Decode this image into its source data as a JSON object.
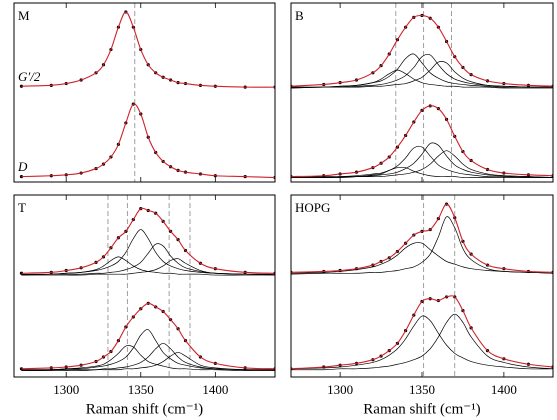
{
  "chart_data": [
    {
      "type": "line",
      "label": "M",
      "x": [
        1270,
        1290,
        1300,
        1310,
        1320,
        1325,
        1330,
        1335,
        1340,
        1345,
        1350,
        1355,
        1360,
        1365,
        1370,
        1375,
        1380,
        1390,
        1400,
        1420,
        1440
      ],
      "xlim": [
        1265,
        1440
      ],
      "xticks": [
        1300,
        1350,
        1400
      ],
      "ylim": [
        0,
        2
      ],
      "show_tick_labels": false,
      "vlines": [
        1346
      ],
      "annotations": [
        "G′/2",
        "D"
      ],
      "series": [
        {
          "color": "#d0212a",
          "markers": true,
          "values": [
            1.07,
            1.08,
            1.1,
            1.14,
            1.22,
            1.31,
            1.48,
            1.73,
            1.9,
            1.73,
            1.48,
            1.31,
            1.22,
            1.17,
            1.14,
            1.11,
            1.1,
            1.08,
            1.07,
            1.06,
            1.06
          ]
        },
        {
          "color": "#d0212a",
          "markers": true,
          "values": [
            0.06,
            0.07,
            0.08,
            0.1,
            0.15,
            0.2,
            0.28,
            0.42,
            0.66,
            0.87,
            0.76,
            0.5,
            0.33,
            0.23,
            0.17,
            0.13,
            0.11,
            0.09,
            0.07,
            0.06,
            0.05
          ]
        }
      ]
    },
    {
      "type": "line",
      "label": "B",
      "x": [
        1270,
        1290,
        1300,
        1310,
        1320,
        1325,
        1330,
        1335,
        1340,
        1345,
        1350,
        1355,
        1360,
        1365,
        1370,
        1375,
        1380,
        1390,
        1400,
        1415,
        1430
      ],
      "xlim": [
        1270,
        1430
      ],
      "xticks": [
        1300,
        1350,
        1400
      ],
      "ylim": [
        0,
        2
      ],
      "show_tick_labels": false,
      "vlines": [
        1334,
        1351,
        1368
      ],
      "series": [
        {
          "color": "#000000",
          "values": [
            1.05,
            1.06,
            1.07,
            1.08,
            1.11,
            1.15,
            1.21,
            1.25,
            1.21,
            1.15,
            1.11,
            1.09,
            1.08,
            1.07,
            1.07,
            1.06,
            1.06,
            1.06,
            1.05,
            1.05,
            1.05
          ]
        },
        {
          "color": "#000000",
          "values": [
            1.06,
            1.06,
            1.07,
            1.08,
            1.11,
            1.13,
            1.18,
            1.26,
            1.38,
            1.43,
            1.33,
            1.22,
            1.16,
            1.12,
            1.1,
            1.09,
            1.08,
            1.07,
            1.06,
            1.06,
            1.06
          ]
        },
        {
          "color": "#000000",
          "values": [
            1.06,
            1.06,
            1.06,
            1.07,
            1.08,
            1.09,
            1.11,
            1.14,
            1.19,
            1.28,
            1.4,
            1.42,
            1.31,
            1.21,
            1.15,
            1.12,
            1.1,
            1.08,
            1.07,
            1.06,
            1.06
          ]
        },
        {
          "color": "#000000",
          "values": [
            1.05,
            1.06,
            1.06,
            1.06,
            1.07,
            1.07,
            1.08,
            1.09,
            1.1,
            1.13,
            1.17,
            1.25,
            1.34,
            1.33,
            1.23,
            1.16,
            1.12,
            1.08,
            1.07,
            1.06,
            1.06
          ]
        },
        {
          "color": "#d0212a",
          "markers": true,
          "values": [
            1.07,
            1.09,
            1.11,
            1.14,
            1.22,
            1.3,
            1.43,
            1.59,
            1.73,
            1.84,
            1.86,
            1.83,
            1.73,
            1.57,
            1.4,
            1.28,
            1.2,
            1.13,
            1.1,
            1.08,
            1.07
          ]
        },
        {
          "color": "#000000",
          "values": [
            0.05,
            0.05,
            0.05,
            0.06,
            0.08,
            0.09,
            0.13,
            0.16,
            0.16,
            0.12,
            0.09,
            0.07,
            0.06,
            0.06,
            0.06,
            0.05,
            0.05,
            0.05,
            0.05,
            0.05,
            0.05
          ]
        },
        {
          "color": "#000000",
          "values": [
            0.05,
            0.06,
            0.06,
            0.07,
            0.09,
            0.1,
            0.13,
            0.18,
            0.27,
            0.38,
            0.39,
            0.29,
            0.19,
            0.14,
            0.11,
            0.09,
            0.08,
            0.06,
            0.06,
            0.05,
            0.05
          ]
        },
        {
          "color": "#000000",
          "values": [
            0.05,
            0.05,
            0.06,
            0.06,
            0.07,
            0.08,
            0.09,
            0.11,
            0.15,
            0.21,
            0.31,
            0.43,
            0.41,
            0.29,
            0.19,
            0.14,
            0.11,
            0.08,
            0.07,
            0.06,
            0.05
          ]
        },
        {
          "color": "#000000",
          "values": [
            0.05,
            0.05,
            0.05,
            0.06,
            0.06,
            0.06,
            0.07,
            0.08,
            0.09,
            0.11,
            0.14,
            0.2,
            0.29,
            0.35,
            0.29,
            0.2,
            0.14,
            0.09,
            0.07,
            0.06,
            0.05
          ]
        },
        {
          "color": "#d0212a",
          "markers": true,
          "values": [
            0.06,
            0.07,
            0.09,
            0.11,
            0.16,
            0.21,
            0.28,
            0.39,
            0.52,
            0.67,
            0.8,
            0.85,
            0.82,
            0.7,
            0.51,
            0.34,
            0.24,
            0.14,
            0.1,
            0.08,
            0.07
          ]
        }
      ]
    },
    {
      "type": "line",
      "label": "T",
      "x": [
        1270,
        1290,
        1300,
        1310,
        1320,
        1325,
        1330,
        1335,
        1340,
        1345,
        1350,
        1355,
        1360,
        1365,
        1370,
        1375,
        1380,
        1390,
        1400,
        1420,
        1440
      ],
      "xlim": [
        1265,
        1440
      ],
      "xticks": [
        1300,
        1350,
        1400
      ],
      "ylim": [
        0,
        2
      ],
      "show_tick_labels": true,
      "xlabel": "Raman shift (cm⁻¹)",
      "vlines": [
        1328,
        1341,
        1369,
        1383
      ],
      "series": [
        {
          "color": "#000000",
          "values": [
            1.12,
            1.13,
            1.14,
            1.15,
            1.18,
            1.22,
            1.28,
            1.32,
            1.28,
            1.22,
            1.18,
            1.16,
            1.15,
            1.14,
            1.14,
            1.13,
            1.13,
            1.13,
            1.12,
            1.12,
            1.12
          ]
        },
        {
          "color": "#000000",
          "values": [
            1.13,
            1.13,
            1.14,
            1.15,
            1.17,
            1.19,
            1.22,
            1.27,
            1.37,
            1.52,
            1.62,
            1.52,
            1.37,
            1.27,
            1.22,
            1.19,
            1.17,
            1.15,
            1.14,
            1.13,
            1.13
          ]
        },
        {
          "color": "#000000",
          "values": [
            1.12,
            1.13,
            1.13,
            1.13,
            1.14,
            1.14,
            1.15,
            1.16,
            1.18,
            1.21,
            1.26,
            1.36,
            1.46,
            1.44,
            1.33,
            1.25,
            1.2,
            1.16,
            1.14,
            1.13,
            1.13
          ]
        },
        {
          "color": "#000000",
          "values": [
            1.12,
            1.12,
            1.12,
            1.12,
            1.13,
            1.13,
            1.13,
            1.13,
            1.13,
            1.14,
            1.15,
            1.16,
            1.18,
            1.22,
            1.28,
            1.3,
            1.25,
            1.17,
            1.14,
            1.13,
            1.12
          ]
        },
        {
          "color": "#d0212a",
          "markers": true,
          "values": [
            1.14,
            1.15,
            1.17,
            1.2,
            1.26,
            1.32,
            1.42,
            1.53,
            1.6,
            1.73,
            1.85,
            1.83,
            1.8,
            1.71,
            1.6,
            1.51,
            1.39,
            1.25,
            1.19,
            1.15,
            1.14
          ]
        },
        {
          "color": "#000000",
          "values": [
            0.08,
            0.08,
            0.09,
            0.1,
            0.12,
            0.14,
            0.19,
            0.26,
            0.34,
            0.33,
            0.24,
            0.17,
            0.14,
            0.12,
            0.1,
            0.09,
            0.09,
            0.08,
            0.08,
            0.07,
            0.07
          ]
        },
        {
          "color": "#000000",
          "values": [
            0.08,
            0.08,
            0.09,
            0.09,
            0.11,
            0.12,
            0.14,
            0.17,
            0.22,
            0.32,
            0.46,
            0.52,
            0.4,
            0.27,
            0.2,
            0.15,
            0.13,
            0.1,
            0.09,
            0.08,
            0.08
          ]
        },
        {
          "color": "#000000",
          "values": [
            0.07,
            0.08,
            0.08,
            0.08,
            0.08,
            0.09,
            0.09,
            0.1,
            0.11,
            0.13,
            0.16,
            0.22,
            0.31,
            0.37,
            0.31,
            0.22,
            0.16,
            0.11,
            0.09,
            0.08,
            0.08
          ]
        },
        {
          "color": "#000000",
          "values": [
            0.07,
            0.07,
            0.07,
            0.07,
            0.08,
            0.08,
            0.08,
            0.08,
            0.09,
            0.09,
            0.1,
            0.11,
            0.13,
            0.17,
            0.23,
            0.27,
            0.23,
            0.13,
            0.1,
            0.08,
            0.08
          ]
        },
        {
          "color": "#d0212a",
          "markers": true,
          "values": [
            0.09,
            0.1,
            0.11,
            0.13,
            0.17,
            0.22,
            0.28,
            0.4,
            0.55,
            0.66,
            0.75,
            0.81,
            0.77,
            0.72,
            0.63,
            0.53,
            0.4,
            0.22,
            0.15,
            0.1,
            0.09
          ]
        }
      ]
    },
    {
      "type": "line",
      "label": "HOPG",
      "x": [
        1270,
        1290,
        1300,
        1310,
        1320,
        1325,
        1330,
        1335,
        1340,
        1345,
        1350,
        1355,
        1360,
        1365,
        1370,
        1375,
        1380,
        1390,
        1400,
        1415,
        1430
      ],
      "xlim": [
        1270,
        1430
      ],
      "xticks": [
        1300,
        1350,
        1400
      ],
      "ylim": [
        0,
        2
      ],
      "show_tick_labels": true,
      "xlabel": "Raman shift (cm⁻¹)",
      "vlines": [
        1351,
        1370
      ],
      "series": [
        {
          "color": "#000000",
          "values": [
            1.14,
            1.15,
            1.16,
            1.18,
            1.21,
            1.24,
            1.28,
            1.34,
            1.42,
            1.47,
            1.47,
            1.4,
            1.33,
            1.27,
            1.24,
            1.21,
            1.19,
            1.17,
            1.16,
            1.15,
            1.14
          ]
        },
        {
          "color": "#000000",
          "values": [
            1.13,
            1.14,
            1.14,
            1.14,
            1.15,
            1.15,
            1.16,
            1.17,
            1.19,
            1.21,
            1.26,
            1.35,
            1.54,
            1.76,
            1.64,
            1.41,
            1.29,
            1.19,
            1.16,
            1.15,
            1.14
          ]
        },
        {
          "color": "#d0212a",
          "markers": true,
          "values": [
            1.15,
            1.16,
            1.17,
            1.19,
            1.23,
            1.27,
            1.31,
            1.38,
            1.47,
            1.56,
            1.6,
            1.62,
            1.74,
            1.9,
            1.75,
            1.49,
            1.35,
            1.23,
            1.19,
            1.16,
            1.15
          ]
        },
        {
          "color": "#000000",
          "values": [
            0.09,
            0.1,
            0.11,
            0.13,
            0.16,
            0.19,
            0.24,
            0.31,
            0.42,
            0.56,
            0.67,
            0.62,
            0.48,
            0.35,
            0.26,
            0.21,
            0.17,
            0.13,
            0.11,
            0.09,
            0.09
          ]
        },
        {
          "color": "#000000",
          "values": [
            0.08,
            0.08,
            0.09,
            0.09,
            0.1,
            0.11,
            0.12,
            0.14,
            0.16,
            0.19,
            0.23,
            0.31,
            0.44,
            0.6,
            0.69,
            0.6,
            0.44,
            0.23,
            0.16,
            0.11,
            0.09
          ]
        },
        {
          "color": "#d0212a",
          "markers": true,
          "values": [
            0.09,
            0.11,
            0.13,
            0.15,
            0.19,
            0.23,
            0.29,
            0.37,
            0.51,
            0.68,
            0.83,
            0.86,
            0.84,
            0.88,
            0.88,
            0.73,
            0.54,
            0.29,
            0.2,
            0.14,
            0.11
          ]
        }
      ]
    }
  ]
}
